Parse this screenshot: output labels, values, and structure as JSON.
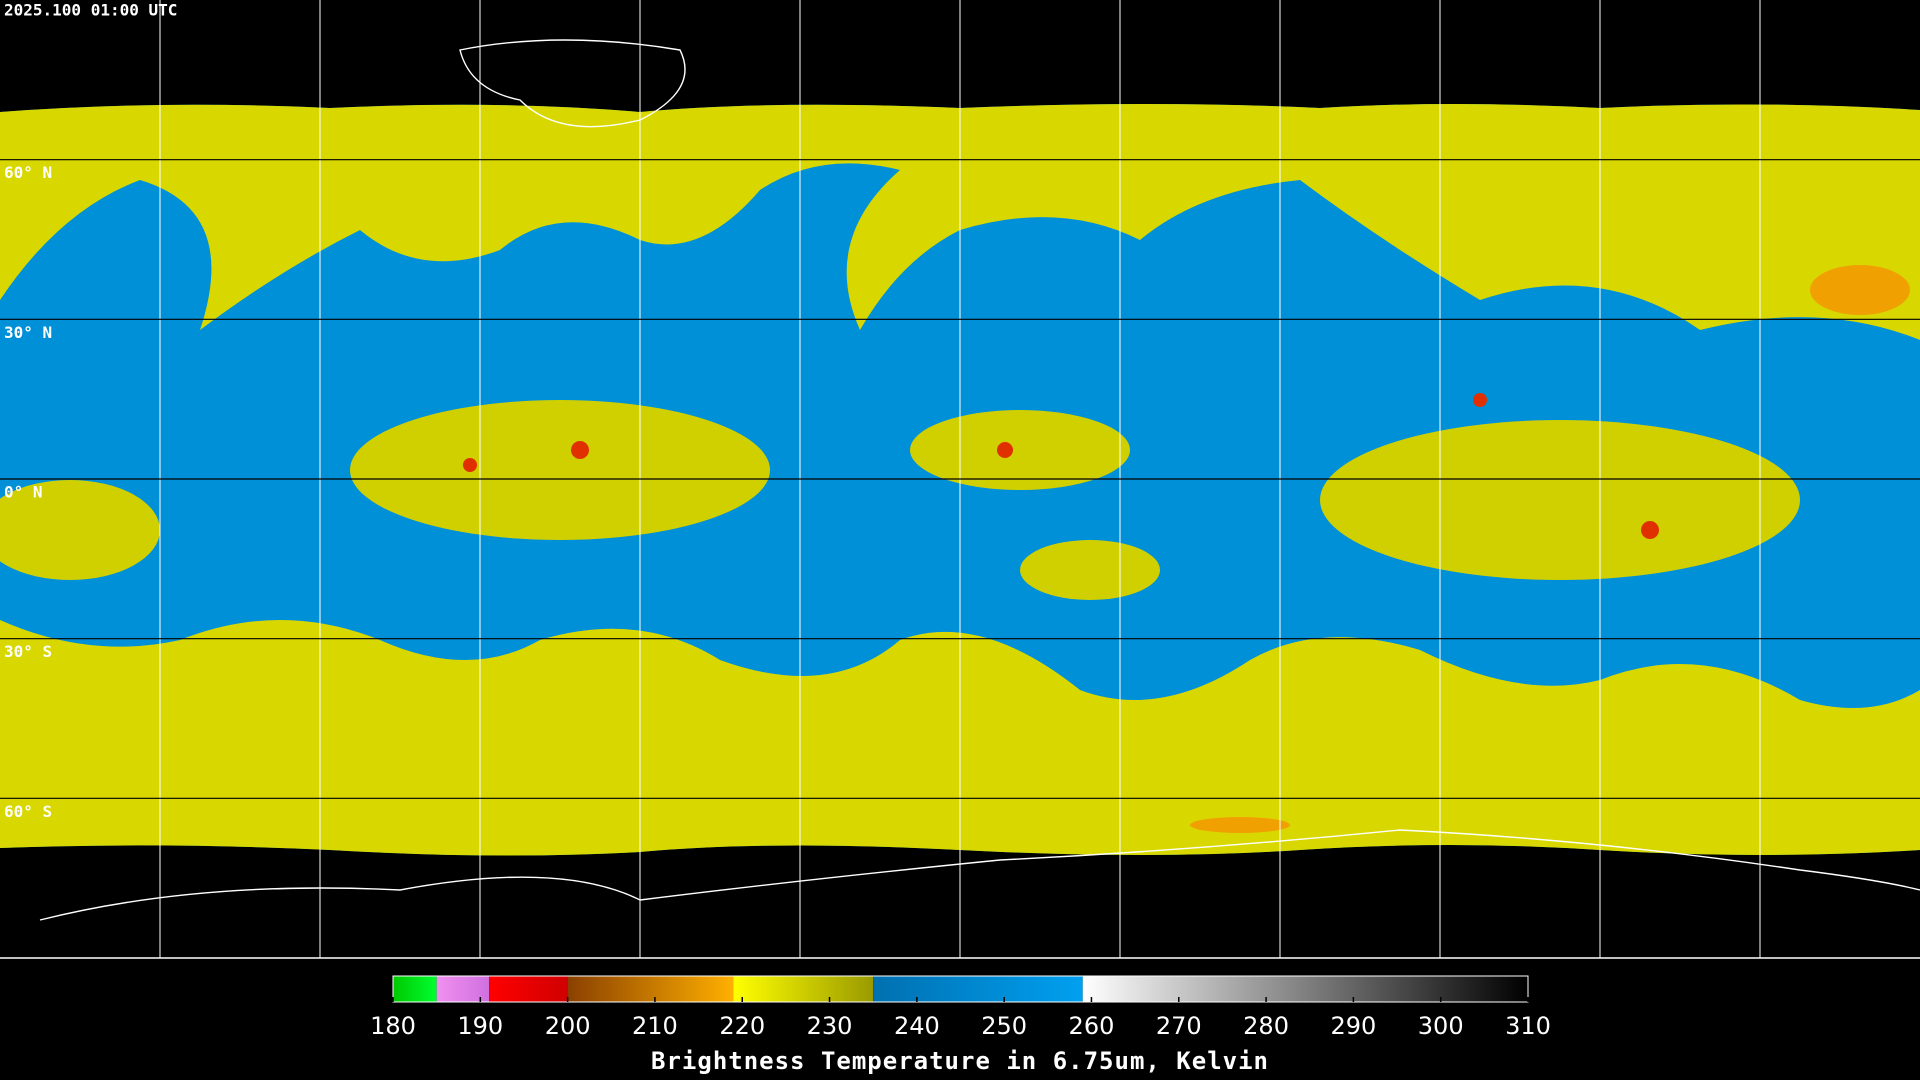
{
  "header": {
    "title": "2025.100 01:00 UTC"
  },
  "map": {
    "latitudes": [
      {
        "value": 60,
        "label": "60° N"
      },
      {
        "value": 30,
        "label": "30° N"
      },
      {
        "value": 0,
        "label": "0° N"
      },
      {
        "value": -30,
        "label": "30° S"
      },
      {
        "value": -60,
        "label": "60° S"
      }
    ],
    "lat_range": [
      90,
      -90
    ]
  },
  "colorbar": {
    "label": "Brightness Temperature in 6.75um, Kelvin",
    "range": [
      180,
      310
    ],
    "ticks": [
      180,
      190,
      200,
      210,
      220,
      230,
      240,
      250,
      260,
      270,
      280,
      290,
      300,
      310
    ],
    "segments": [
      {
        "from": 180,
        "to": 185,
        "colors": [
          "#00c800",
          "#00ff30"
        ]
      },
      {
        "from": 185,
        "to": 191,
        "colors": [
          "#f090f0",
          "#d070e0"
        ]
      },
      {
        "from": 191,
        "to": 200,
        "colors": [
          "#ff0000",
          "#d00000"
        ]
      },
      {
        "from": 200,
        "to": 219,
        "colors": [
          "#8a4000",
          "#ffb000"
        ]
      },
      {
        "from": 219,
        "to": 235,
        "colors": [
          "#ffff00",
          "#9a9a00"
        ]
      },
      {
        "from": 235,
        "to": 259,
        "colors": [
          "#0070b0",
          "#00a0f0"
        ]
      },
      {
        "from": 259,
        "to": 310,
        "colors": [
          "#ffffff",
          "#000000"
        ]
      }
    ]
  }
}
